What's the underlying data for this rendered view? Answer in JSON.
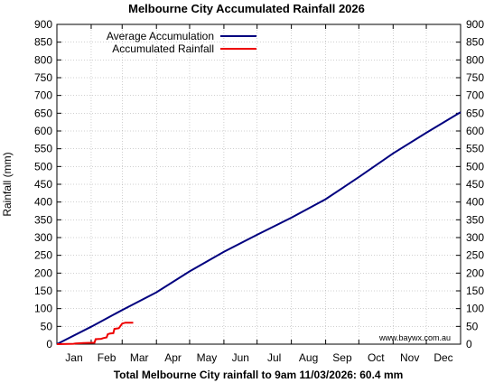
{
  "chart_data": {
    "type": "line",
    "title": "Melbourne City Accumulated Rainfall 2026",
    "xlabel": "Total Melbourne City rainfall to 9am 11/03/2026: 60.4 mm",
    "ylabel": "Rainfall (mm)",
    "source_note": "www.baywx.com.au",
    "months": [
      "Jan",
      "Feb",
      "Mar",
      "Apr",
      "May",
      "Jun",
      "Jul",
      "Aug",
      "Sep",
      "Oct",
      "Nov",
      "Dec"
    ],
    "xlim": [
      0,
      365
    ],
    "ylim": [
      0,
      900
    ],
    "yticks": [
      0,
      50,
      100,
      150,
      200,
      250,
      300,
      350,
      400,
      450,
      500,
      550,
      600,
      650,
      700,
      750,
      800,
      850,
      900
    ],
    "grid": true,
    "legend_position": "top-left",
    "series": [
      {
        "name": "Average Accumulation",
        "color": "#00007f",
        "x": [
          0,
          31,
          59,
          90,
          120,
          151,
          181,
          212,
          243,
          273,
          304,
          334,
          365
        ],
        "y": [
          0,
          49,
          96,
          146,
          205,
          260,
          308,
          356,
          408,
          470,
          537,
          595,
          653
        ]
      },
      {
        "name": "Accumulated Rainfall",
        "color": "#ee0000",
        "x": [
          0,
          10,
          15,
          17,
          24,
          34,
          35,
          40,
          42,
          45,
          46,
          48,
          51,
          52,
          56,
          59,
          62,
          69
        ],
        "y": [
          0,
          0.4,
          1,
          2,
          3,
          4,
          14,
          15,
          17,
          19,
          28,
          30,
          31,
          43,
          45,
          58,
          60.4,
          60.4
        ]
      }
    ]
  }
}
